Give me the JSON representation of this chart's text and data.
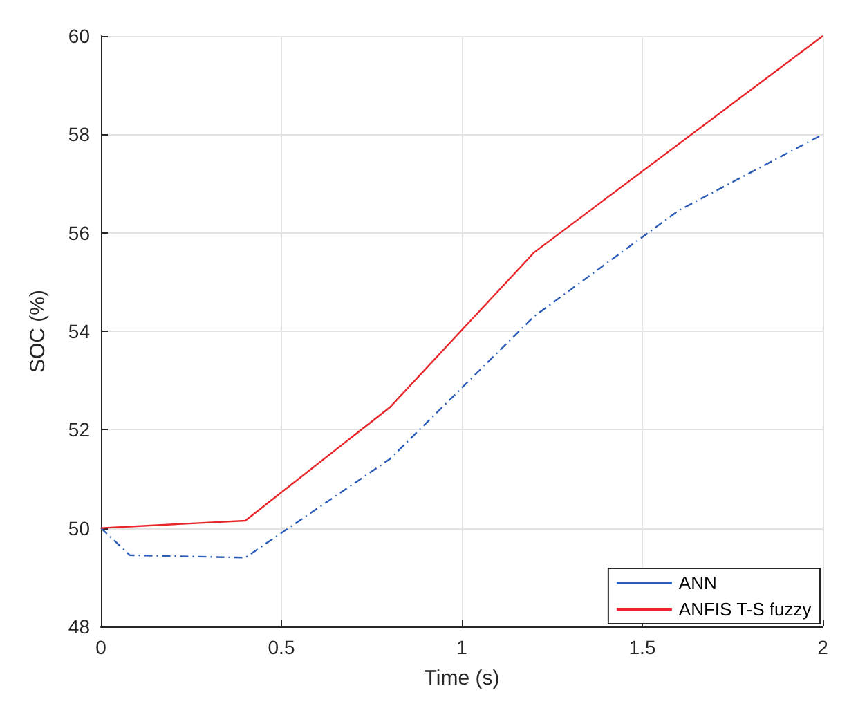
{
  "chart_data": {
    "type": "line",
    "xlabel": "Time (s)",
    "ylabel": "SOC (%)",
    "xlim": [
      0,
      2
    ],
    "xticks": [
      0,
      0.5,
      1,
      1.5,
      2
    ],
    "ylim": [
      48,
      60
    ],
    "yticks": [
      48,
      50,
      52,
      54,
      56,
      58,
      60
    ],
    "grid": true,
    "legend": "bottom right",
    "marker": "none",
    "series": [
      {
        "name": "ANN",
        "color": "#2b5cb8",
        "line_style": "dashdot",
        "x": [
          0,
          0.08,
          0.4,
          0.8,
          1.2,
          1.6,
          2
        ],
        "values": [
          50,
          49.45,
          49.4,
          51.4,
          54.3,
          56.45,
          58
        ]
      },
      {
        "name": "ANFIS T-S fuzzy",
        "color": "#e8262a",
        "line_style": "solid",
        "x": [
          0,
          0.4,
          0.8,
          1.2,
          2
        ],
        "values": [
          50,
          50.15,
          52.45,
          55.6,
          60
        ]
      }
    ]
  }
}
